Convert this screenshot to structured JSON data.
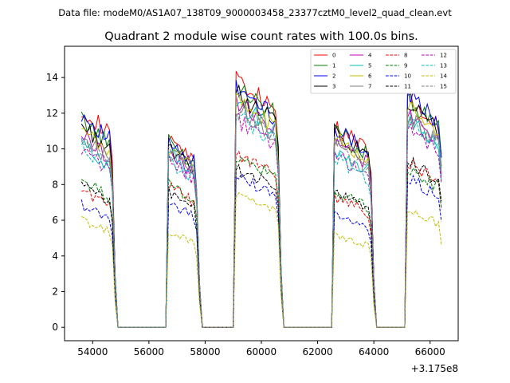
{
  "figure": {
    "suptitle": "Data file: modeM0/AS1A07_138T09_9000003458_23377cztM0_level2_quad_clean.evt"
  },
  "chart_data": {
    "type": "line",
    "title": "Quadrant 2 module wise count rates with 100.0s bins.",
    "xlabel": "",
    "ylabel": "",
    "x_offset_label": "+3.175e8",
    "xlim": [
      53000,
      67000
    ],
    "ylim": [
      -0.75,
      15.75
    ],
    "xticks": [
      54000,
      56000,
      58000,
      60000,
      62000,
      64000,
      66000
    ],
    "yticks": [
      0,
      2,
      4,
      6,
      8,
      10,
      12,
      14
    ],
    "grid": false,
    "legend_position": "top-right",
    "x_start": 53600,
    "bin_width": 100,
    "bins": 129,
    "segments": [
      {
        "name": "s1",
        "start": 53600,
        "end": 54700
      },
      {
        "name": "s2",
        "start": 56700,
        "end": 57700
      },
      {
        "name": "s3",
        "start": 59100,
        "end": 60600
      },
      {
        "name": "s4",
        "start": 62600,
        "end": 63900
      },
      {
        "name": "s5",
        "start": 65200,
        "end": 66400
      }
    ],
    "segment_levels": [
      [
        11.6,
        10.0,
        13.2,
        10.6,
        12.3
      ],
      [
        11.0,
        9.8,
        12.8,
        10.4,
        12.0
      ],
      [
        11.3,
        9.9,
        12.7,
        10.6,
        12.3
      ],
      [
        10.7,
        9.4,
        12.4,
        10.3,
        11.8
      ],
      [
        10.2,
        9.2,
        12.0,
        9.9,
        11.4
      ],
      [
        9.7,
        9.3,
        11.9,
        9.4,
        11.0
      ],
      [
        10.4,
        9.5,
        12.0,
        10.1,
        11.6
      ],
      [
        10.1,
        9.2,
        11.6,
        9.8,
        11.1
      ],
      [
        7.3,
        7.5,
        9.2,
        6.9,
        8.7
      ],
      [
        7.8,
        7.6,
        9.0,
        7.2,
        8.4
      ],
      [
        6.5,
        6.6,
        8.0,
        6.0,
        7.9
      ],
      [
        7.5,
        7.2,
        8.4,
        7.1,
        8.8
      ],
      [
        9.4,
        8.9,
        11.0,
        9.1,
        10.7
      ],
      [
        9.6,
        8.8,
        11.2,
        9.0,
        10.9
      ],
      [
        5.7,
        5.1,
        7.0,
        4.9,
        6.2
      ],
      [
        9.9,
        9.6,
        11.5,
        9.6,
        11.2
      ]
    ],
    "series": [
      {
        "name": "0",
        "color": "#ff0000",
        "dash": "solid"
      },
      {
        "name": "1",
        "color": "#008000",
        "dash": "solid"
      },
      {
        "name": "2",
        "color": "#0000ff",
        "dash": "solid"
      },
      {
        "name": "3",
        "color": "#000000",
        "dash": "solid"
      },
      {
        "name": "4",
        "color": "#bf00bf",
        "dash": "solid"
      },
      {
        "name": "5",
        "color": "#00bfbf",
        "dash": "solid"
      },
      {
        "name": "6",
        "color": "#bfbf00",
        "dash": "solid"
      },
      {
        "name": "7",
        "color": "#808080",
        "dash": "solid"
      },
      {
        "name": "8",
        "color": "#ff0000",
        "dash": "dashed"
      },
      {
        "name": "9",
        "color": "#008000",
        "dash": "dashed"
      },
      {
        "name": "10",
        "color": "#0000ff",
        "dash": "dashed"
      },
      {
        "name": "11",
        "color": "#000000",
        "dash": "dashed"
      },
      {
        "name": "12",
        "color": "#bf00bf",
        "dash": "dashed"
      },
      {
        "name": "13",
        "color": "#00bfbf",
        "dash": "dashed"
      },
      {
        "name": "14",
        "color": "#bfbf00",
        "dash": "dashed"
      },
      {
        "name": "15",
        "color": "#808080",
        "dash": "dashed"
      }
    ]
  }
}
